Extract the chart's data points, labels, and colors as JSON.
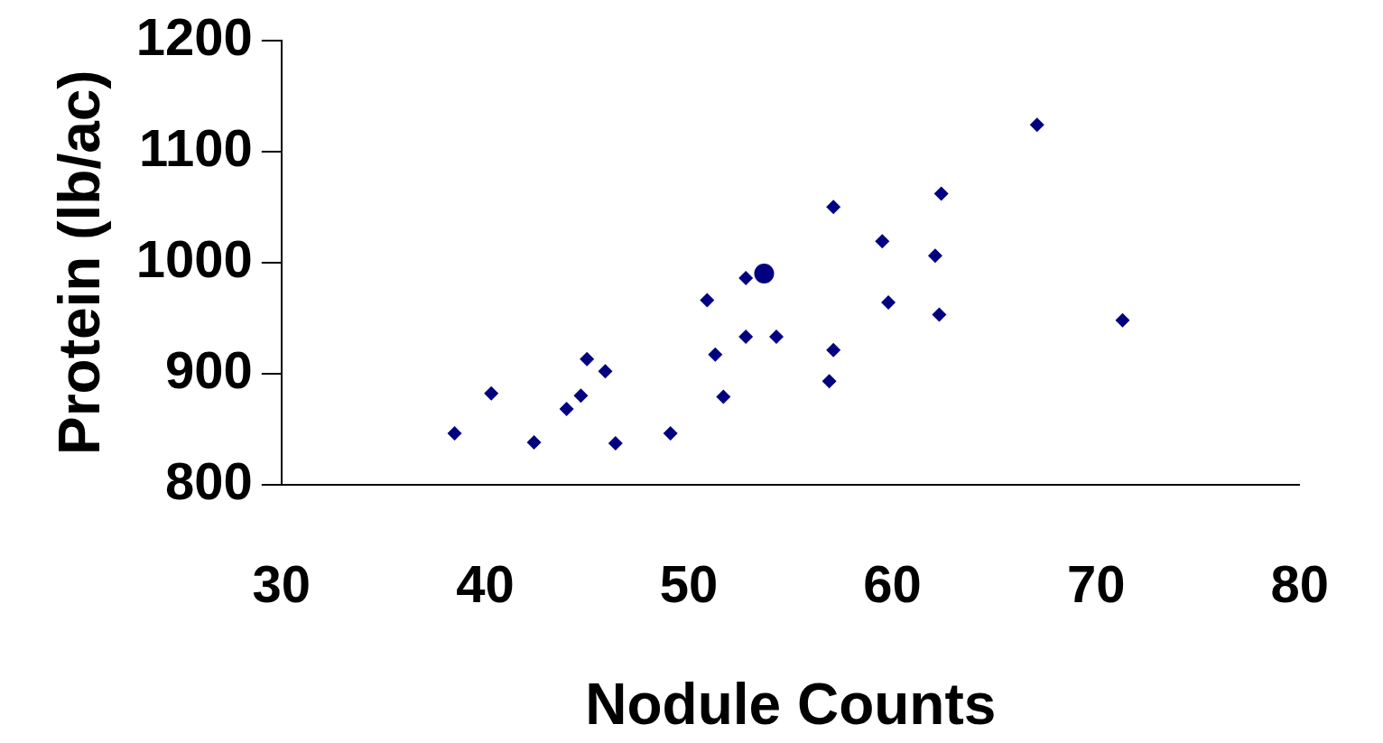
{
  "chart_data": {
    "type": "scatter",
    "xlabel": "Nodule Counts",
    "ylabel": "Protein (lb/ac)",
    "xlim": [
      30,
      80
    ],
    "xticks": [
      30,
      40,
      50,
      60,
      70,
      80
    ],
    "ylim": [
      800,
      1200
    ],
    "yticks": [
      800,
      900,
      1000,
      1100,
      1200
    ],
    "series": [
      {
        "color": "#000080",
        "marker": "diamond",
        "x": [
          38.5,
          40.3,
          42.4,
          44.0,
          44.7,
          45.0,
          45.9,
          46.4,
          49.1,
          50.9,
          51.3,
          51.7,
          52.8,
          52.8,
          54.3,
          56.9,
          57.1,
          57.1,
          59.5,
          59.8,
          62.1,
          62.3,
          62.4,
          67.1,
          71.3
        ],
        "values": [
          846,
          882,
          838,
          868,
          880,
          913,
          902,
          837,
          846,
          966,
          917,
          879,
          986,
          933,
          933,
          893,
          921,
          1050,
          1019,
          964,
          1006,
          953,
          1062,
          1124,
          948
        ]
      },
      {
        "color": "#000080",
        "marker": "circle",
        "x": [
          53.7
        ],
        "values": [
          990
        ]
      }
    ]
  }
}
